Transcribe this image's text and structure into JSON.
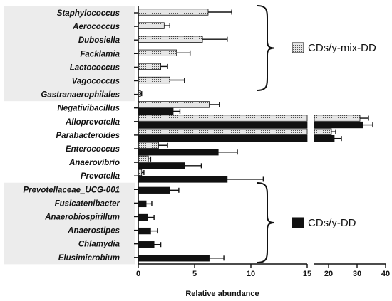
{
  "chart_data": {
    "type": "bar",
    "orientation": "horizontal",
    "xlabel": "Relative abundance",
    "x_axis_segments": [
      {
        "range": [
          0,
          15
        ],
        "ticks": [
          0,
          5,
          10,
          15
        ]
      },
      {
        "range": [
          15,
          40
        ],
        "ticks": [
          20,
          30,
          40
        ]
      }
    ],
    "categories": [
      "Staphylococcus",
      "Aerococcus",
      "Dubosiella",
      "Facklamia",
      "Lactococcus",
      "Vagococcus",
      "Gastranaerophilales",
      "Negativibacillus",
      "Alloprevotella",
      "Parabacteroides",
      "Enterococcus",
      "Anaerovibrio",
      "Prevotella",
      "Prevotellaceae_UCG-001",
      "Fusicatenibacter",
      "Anaerobiospirillum",
      "Anaerostipes",
      "Chlamydia",
      "Elusimicrobium"
    ],
    "highlighted_categories": {
      "group_top": [
        "Staphylococcus",
        "Aerococcus",
        "Dubosiella",
        "Facklamia",
        "Lactococcus",
        "Vagococcus",
        "Gastranaerophilales"
      ],
      "group_bottom": [
        "Prevotellaceae_UCG-001",
        "Fusicatenibacter",
        "Anaerobiospirillum",
        "Anaerostipes",
        "Chlamydia",
        "Elusimicrobium"
      ]
    },
    "series": [
      {
        "name": "CDs/y-mix-DD",
        "color": "#dcdcdc",
        "pattern": "dotted",
        "values": [
          6.2,
          2.3,
          5.7,
          3.4,
          2.0,
          2.8,
          0.2,
          6.3,
          31.0,
          21.0,
          1.8,
          0.9,
          0.3,
          null,
          null,
          null,
          null,
          null,
          null
        ],
        "error": [
          2.1,
          0.5,
          2.2,
          1.2,
          0.6,
          1.3,
          0.1,
          0.9,
          3.0,
          1.5,
          0.8,
          0.2,
          0.2,
          null,
          null,
          null,
          null,
          null,
          null
        ]
      },
      {
        "name": "CDs/y-DD",
        "color": "#111111",
        "pattern": "solid",
        "values": [
          null,
          null,
          null,
          null,
          null,
          null,
          null,
          3.1,
          32.0,
          22.0,
          7.1,
          4.1,
          7.9,
          2.8,
          0.7,
          0.8,
          1.1,
          1.4,
          6.3
        ],
        "error": [
          null,
          null,
          null,
          null,
          null,
          null,
          null,
          0.6,
          3.5,
          2.5,
          1.7,
          1.5,
          3.2,
          0.8,
          0.5,
          0.6,
          0.6,
          0.6,
          1.3
        ]
      }
    ],
    "legend": [
      {
        "label": "CDs/y-mix-DD",
        "color": "#dcdcdc",
        "pattern": "dotted",
        "position": "right-upper"
      },
      {
        "label": "CDs/y-DD",
        "color": "#111111",
        "pattern": "solid",
        "position": "right-lower"
      }
    ]
  }
}
